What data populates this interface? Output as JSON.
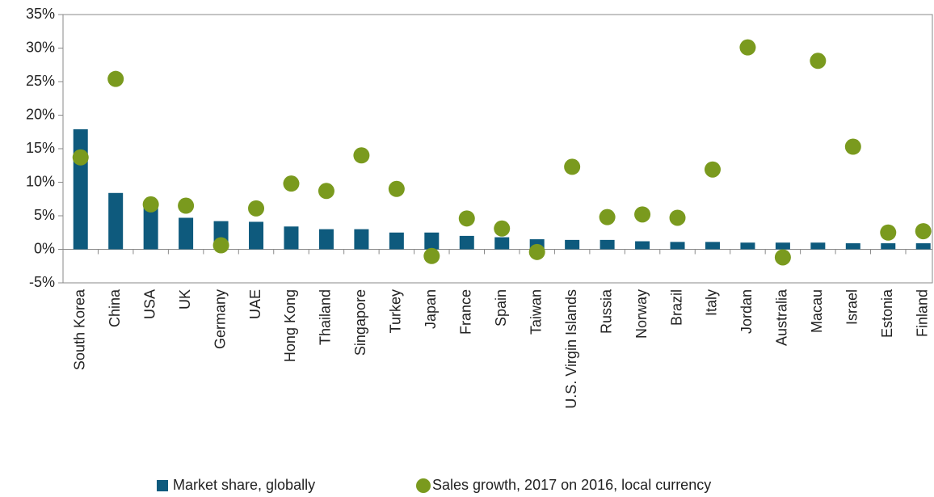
{
  "chart_data": {
    "type": "bar",
    "categories": [
      "South Korea",
      "China",
      "USA",
      "UK",
      "Germany",
      "UAE",
      "Hong Kong",
      "Thailand",
      "Singapore",
      "Turkey",
      "Japan",
      "France",
      "Spain",
      "Taiwan",
      "U.S. Virgin Islands",
      "Russia",
      "Norway",
      "Brazil",
      "Italy",
      "Jordan",
      "Australia",
      "Macau",
      "Israel",
      "Estonia",
      "Finland"
    ],
    "series": [
      {
        "name": "Market share, globally",
        "color": "#0e5a7d",
        "mark": "bar",
        "values": [
          17.9,
          8.4,
          6.5,
          4.7,
          4.2,
          4.1,
          3.4,
          3.0,
          3.0,
          2.5,
          2.5,
          2.0,
          1.8,
          1.5,
          1.4,
          1.4,
          1.2,
          1.1,
          1.1,
          1.0,
          1.0,
          1.0,
          0.9,
          0.9,
          0.9
        ]
      },
      {
        "name": "Sales growth, 2017 on 2016, local currency",
        "color": "#7a9a1e",
        "mark": "dot",
        "values": [
          13.7,
          25.4,
          6.7,
          6.5,
          0.6,
          6.1,
          9.8,
          8.7,
          14.0,
          9.0,
          -1.0,
          4.6,
          3.1,
          -0.4,
          12.3,
          4.8,
          5.2,
          4.7,
          11.9,
          30.1,
          -1.2,
          28.1,
          15.3,
          2.5,
          2.7
        ]
      }
    ],
    "ylim": [
      -5,
      35
    ],
    "yticks": [
      {
        "value": -5,
        "label": "-5%"
      },
      {
        "value": 0,
        "label": "0%"
      },
      {
        "value": 5,
        "label": "5%"
      },
      {
        "value": 10,
        "label": "10%"
      },
      {
        "value": 15,
        "label": "15%"
      },
      {
        "value": 20,
        "label": "20%"
      },
      {
        "value": 25,
        "label": "25%"
      },
      {
        "value": 30,
        "label": "30%"
      },
      {
        "value": 35,
        "label": "35%"
      }
    ],
    "legend": "bottom",
    "grid": false
  }
}
